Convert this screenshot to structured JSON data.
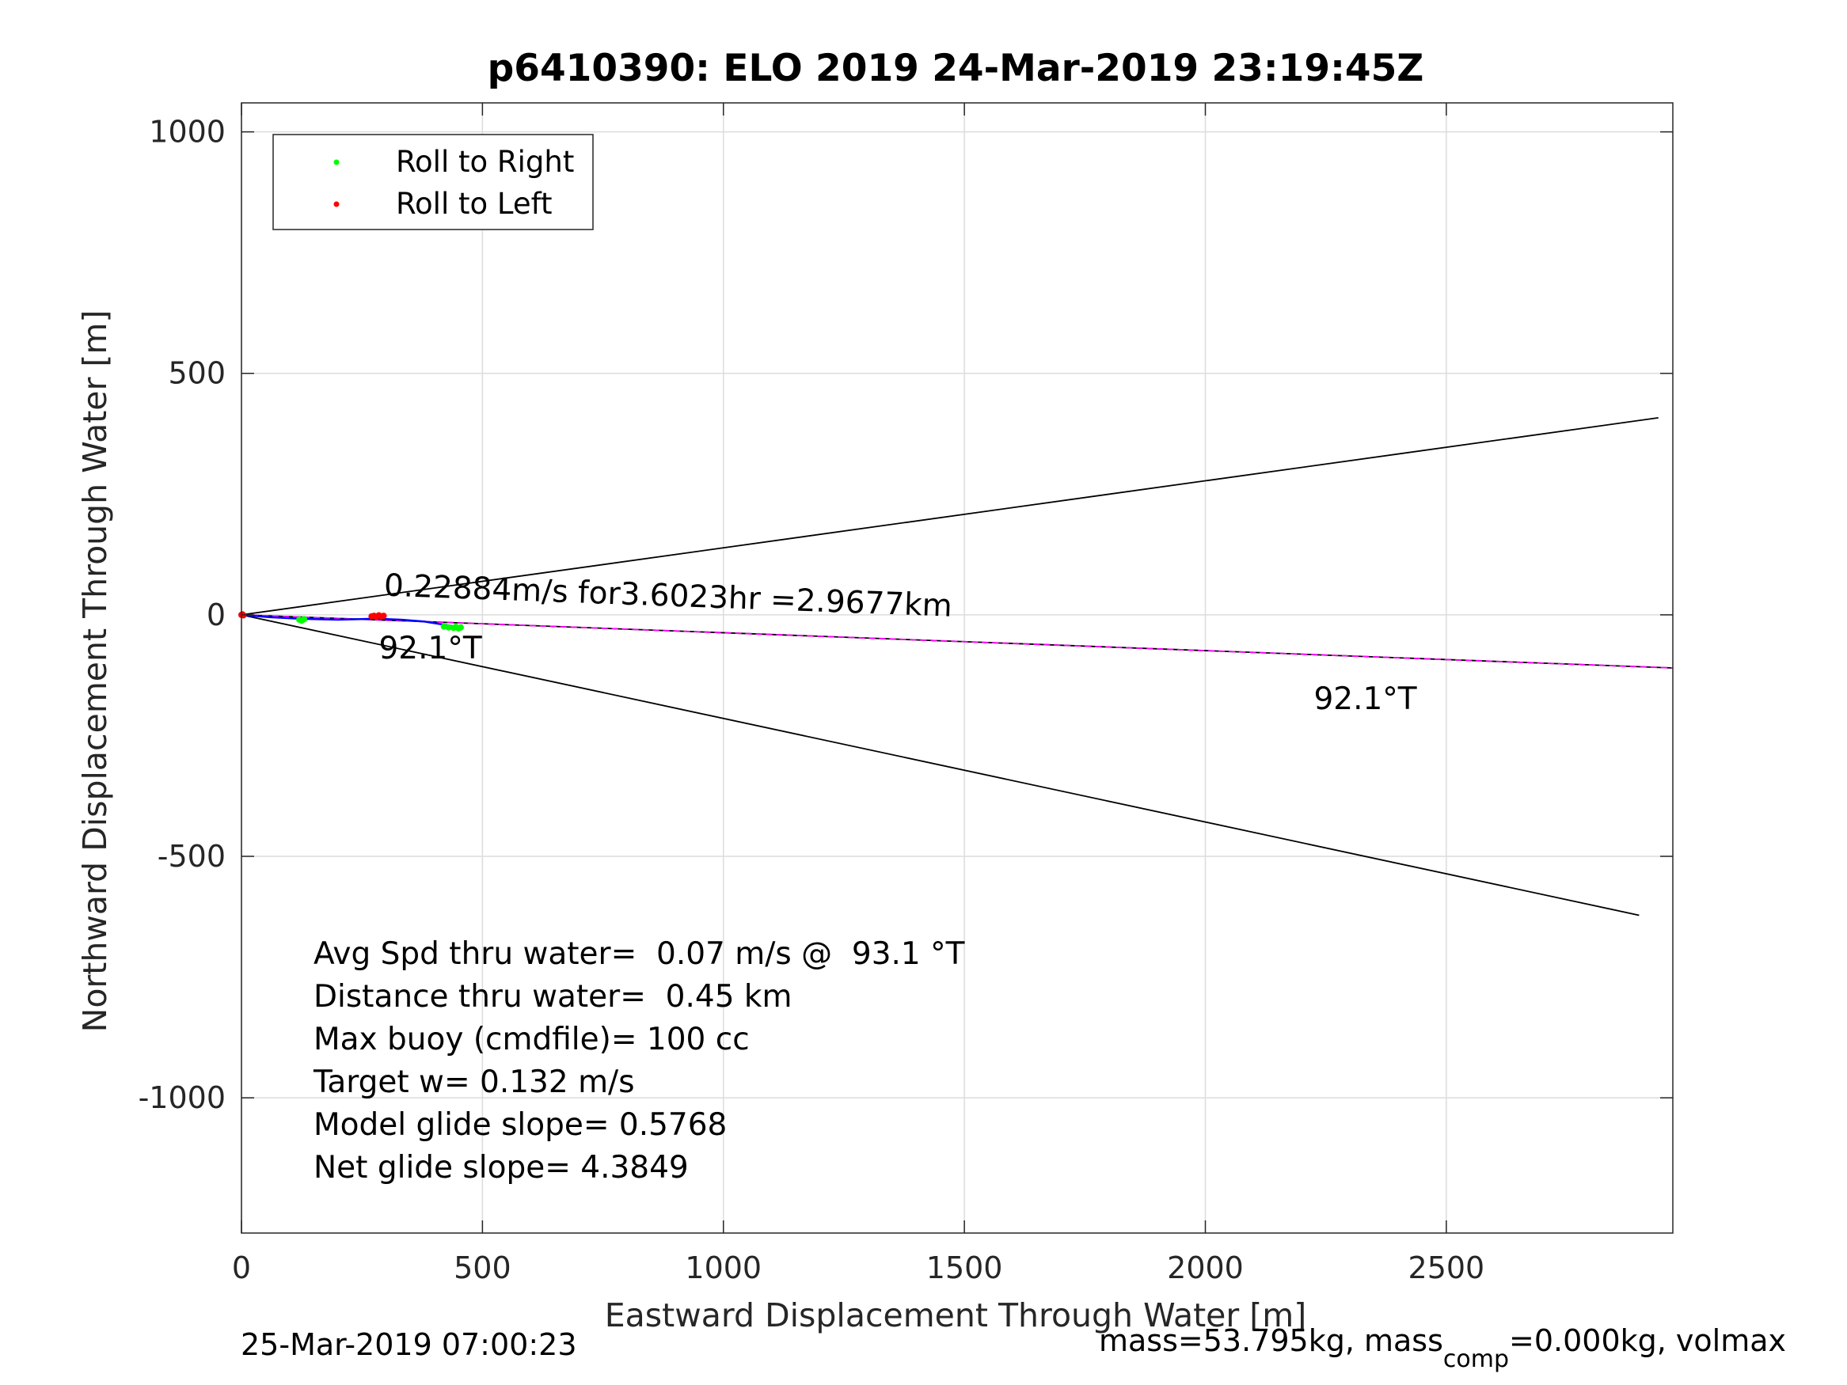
{
  "chart_data": {
    "type": "line",
    "title": "p6410390: ELO 2019 24-Mar-2019 23:19:45Z",
    "xlabel": "Eastward Displacement Through Water [m]",
    "ylabel": "Northward Displacement Through Water [m]",
    "xlim": [
      0,
      2970
    ],
    "ylim": [
      -1280,
      1060
    ],
    "xticks": [
      0,
      500,
      1000,
      1500,
      2000,
      2500
    ],
    "yticks": [
      -1000,
      -500,
      0,
      500,
      1000
    ],
    "xtick_labels": [
      "0",
      "500",
      "1000",
      "1500",
      "2000",
      "2500"
    ],
    "ytick_labels": [
      "-1000",
      "-500",
      "0",
      "500",
      "1000"
    ],
    "grid": true,
    "legend": {
      "placement": "top-left",
      "entries": [
        {
          "label": "Roll to Right",
          "color": "#00ff00"
        },
        {
          "label": "Roll to Left",
          "color": "#ff0000"
        }
      ]
    },
    "lines": [
      {
        "role": "upper-bound",
        "color": "#000000",
        "x": [
          0,
          2940
        ],
        "y": [
          0,
          408
        ]
      },
      {
        "role": "lower-bound",
        "color": "#000000",
        "x": [
          0,
          2900
        ],
        "y": [
          0,
          -622
        ]
      },
      {
        "role": "heading-line",
        "color": "#000000",
        "x": [
          0,
          2970
        ],
        "y": [
          0,
          -110
        ]
      },
      {
        "role": "heading-line",
        "color": "#ff00ff",
        "dashed": true,
        "x": [
          0,
          2970
        ],
        "y": [
          0,
          -110
        ]
      },
      {
        "role": "track",
        "color": "#0000ff",
        "x": [
          0,
          60,
          120,
          200,
          280,
          330,
          380,
          430,
          450
        ],
        "y": [
          0,
          -5,
          -8,
          -10,
          -8,
          -10,
          -14,
          -22,
          -25
        ]
      }
    ],
    "series": [
      {
        "name": "Roll to Right",
        "color": "#00ff00",
        "x": [
          120,
          125,
          130,
          420,
          430,
          440,
          445,
          450,
          455
        ],
        "y": [
          -10,
          -12,
          -9,
          -24,
          -26,
          -27,
          -25,
          -28,
          -26
        ]
      },
      {
        "name": "Roll to Left",
        "color": "#ff0000",
        "x": [
          0,
          2,
          4,
          270,
          275,
          280,
          285,
          290,
          295
        ],
        "y": [
          0,
          1,
          -1,
          -3,
          -2,
          -4,
          -1,
          -3,
          -2
        ]
      }
    ],
    "annotations": [
      {
        "text": "0.22884m/s for3.6023hr =2.9677km",
        "x": 295,
        "y": 40,
        "rotate_deg": 2.1
      },
      {
        "text": "92.1°T",
        "x": 285,
        "y": -90,
        "rotate_deg": 0
      },
      {
        "text": "92.1°T",
        "x": 2225,
        "y": -195,
        "rotate_deg": 0
      }
    ],
    "stats": [
      "Avg Spd thru water=  0.07 m/s @  93.1 °T",
      "Distance thru water=  0.45 km",
      "Max buoy (cmdfile)= 100 cc",
      "Target w= 0.132 m/s",
      "Model glide slope= 0.5768",
      "Net glide slope= 4.3849"
    ],
    "footer": {
      "timestamp": "25-Mar-2019 07:00:23",
      "mass_pre": "mass=53.795kg, mass",
      "mass_sub": "comp",
      "mass_post": "=0.000kg, volmax"
    }
  }
}
